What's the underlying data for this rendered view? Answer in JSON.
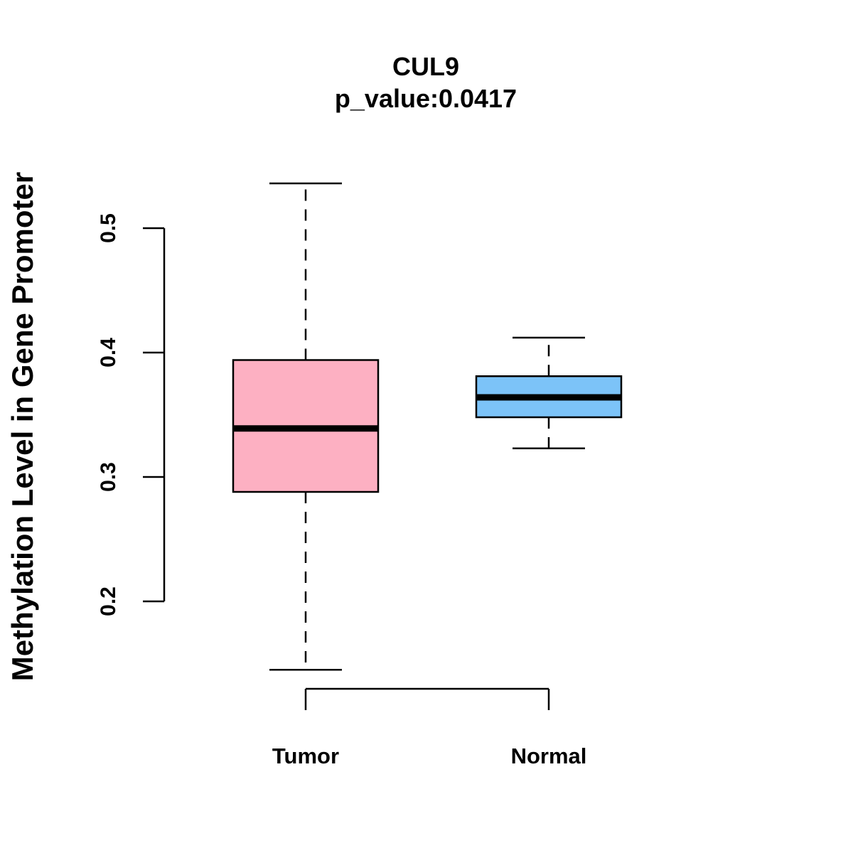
{
  "chart_data": {
    "type": "boxplot",
    "title": "CUL9",
    "subtitle": "p_value:0.0417",
    "xlabel": "",
    "ylabel": "Methylation Level in Gene Promoter",
    "ylim": [
      0.2,
      0.5
    ],
    "yticks": [
      0.2,
      0.3,
      0.4,
      0.5
    ],
    "ytick_labels": [
      "0.2",
      "0.3",
      "0.4",
      "0.5"
    ],
    "categories": [
      "Tumor",
      "Normal"
    ],
    "series": [
      {
        "name": "Tumor",
        "whisker_low": 0.145,
        "q1": 0.288,
        "median": 0.339,
        "q3": 0.394,
        "whisker_high": 0.536,
        "color": "#FDB0C2"
      },
      {
        "name": "Normal",
        "whisker_low": 0.323,
        "q1": 0.348,
        "median": 0.364,
        "q3": 0.381,
        "whisker_high": 0.412,
        "color": "#7CC3F8"
      }
    ]
  }
}
